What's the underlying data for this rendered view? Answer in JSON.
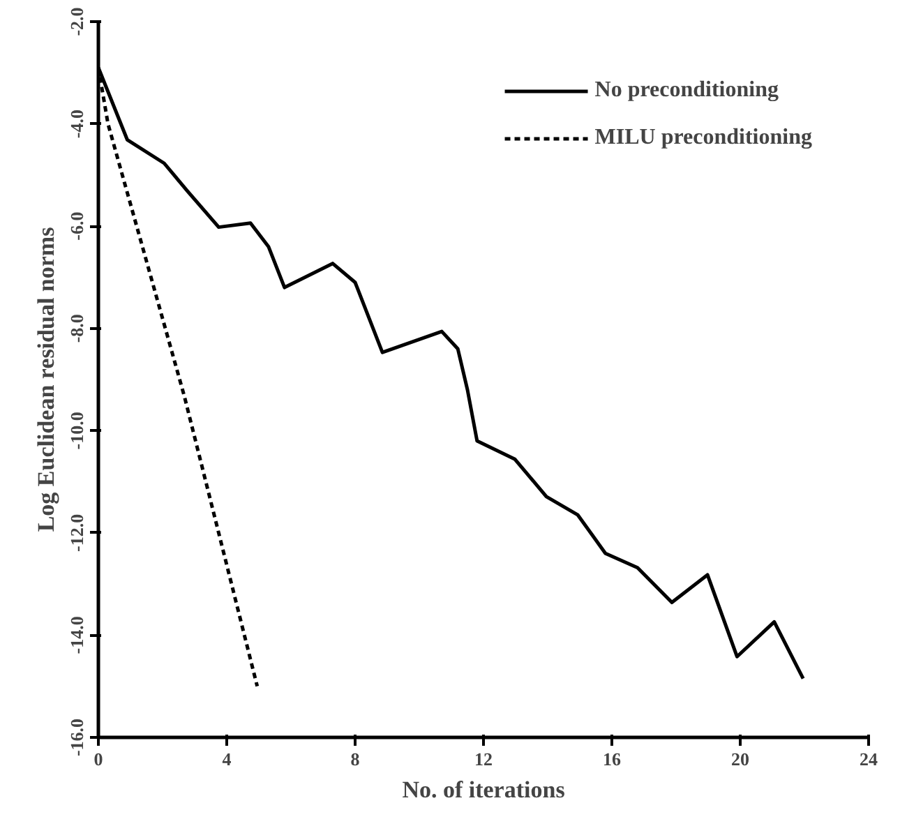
{
  "chart_data": {
    "type": "line",
    "xlabel": "No. of iterations",
    "ylabel": "Log Euclidean residual norms",
    "xlim": [
      0,
      24
    ],
    "ylim": [
      -16,
      -2
    ],
    "xticks": [
      0,
      4,
      8,
      12,
      16,
      20,
      24
    ],
    "yticks": [
      {
        "value": -2,
        "label": "-2.0"
      },
      {
        "value": -4,
        "label": "-4.0"
      },
      {
        "value": -6,
        "label": "-6.0"
      },
      {
        "value": -8,
        "label": "-8.0"
      },
      {
        "value": -10,
        "label": "-10.0"
      },
      {
        "value": -12,
        "label": "-12.0"
      },
      {
        "value": -14,
        "label": "-14.0"
      },
      {
        "value": -16,
        "label": "-16.0"
      }
    ],
    "grid": false,
    "legend": "top right",
    "series": [
      {
        "name": "No preconditioning",
        "color": "#000000",
        "line_style": "solid",
        "x": [
          0,
          0.9,
          2.05,
          2.77,
          3.75,
          4.74,
          5.3,
          5.8,
          7.3,
          8.0,
          8.85,
          10.7,
          11.2,
          11.5,
          11.8,
          12.98,
          13.96,
          14.94,
          15.8,
          16.8,
          17.87,
          18.98,
          19.9,
          21.06,
          21.96
        ],
        "values": [
          -2.9,
          -4.31,
          -4.77,
          -5.31,
          -6.02,
          -5.94,
          -6.4,
          -7.2,
          -6.73,
          -7.1,
          -8.47,
          -8.06,
          -8.4,
          -9.2,
          -10.2,
          -10.56,
          -11.29,
          -11.65,
          -12.4,
          -12.68,
          -13.36,
          -12.82,
          -14.42,
          -13.74,
          -14.85
        ]
      },
      {
        "name": "MILU preconditioning",
        "color": "#000000",
        "line_style": "dashed",
        "x": [
          0,
          0.3,
          2.68,
          4.95
        ],
        "values": [
          -2.9,
          -4.0,
          -9.33,
          -15.0
        ]
      }
    ]
  }
}
